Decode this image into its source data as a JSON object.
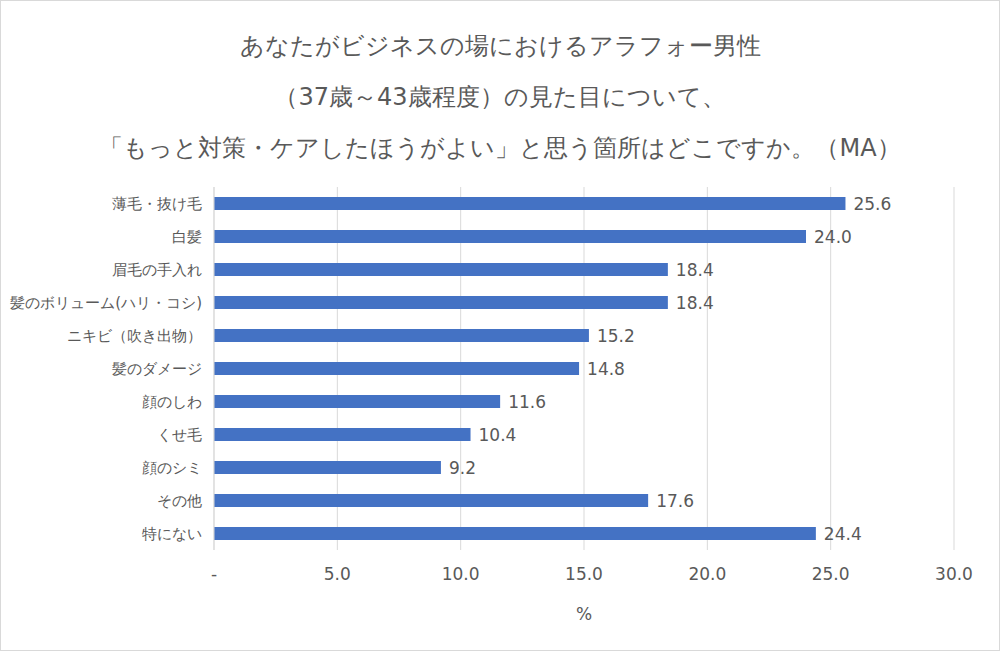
{
  "chart_data": {
    "type": "bar",
    "orientation": "horizontal",
    "title": "あなたがビジネスの場におけるアラフォー男性\n（37歳～43歳程度）の見た目について、\n「もっと対策・ケアしたほうがよい」と思う箇所はどこですか。（MA）",
    "categories": [
      "薄毛・抜け毛",
      "白髪",
      "眉毛の手入れ",
      "髪のボリューム(ハリ・コシ)",
      "ニキビ（吹き出物）",
      "髪のダメージ",
      "顔のしわ",
      "くせ毛",
      "顔のシミ",
      "その他",
      "特にない"
    ],
    "values": [
      25.6,
      24.0,
      18.4,
      18.4,
      15.2,
      14.8,
      11.6,
      10.4,
      9.2,
      17.6,
      24.4
    ],
    "value_labels": [
      "25.6",
      "24.0",
      "18.4",
      "18.4",
      "15.2",
      "14.8",
      "11.6",
      "10.4",
      "9.2",
      "17.6",
      "24.4"
    ],
    "color": "#4472c4",
    "xlabel": "%",
    "xlim": [
      0,
      30
    ],
    "xticks": [
      {
        "value": 0,
        "label": "-"
      },
      {
        "value": 5,
        "label": "5.0"
      },
      {
        "value": 10,
        "label": "10.0"
      },
      {
        "value": 15,
        "label": "15.0"
      },
      {
        "value": 20,
        "label": "20.0"
      },
      {
        "value": 25,
        "label": "25.0"
      },
      {
        "value": 30,
        "label": "30.0"
      }
    ],
    "grid": true,
    "data_labels": true
  }
}
